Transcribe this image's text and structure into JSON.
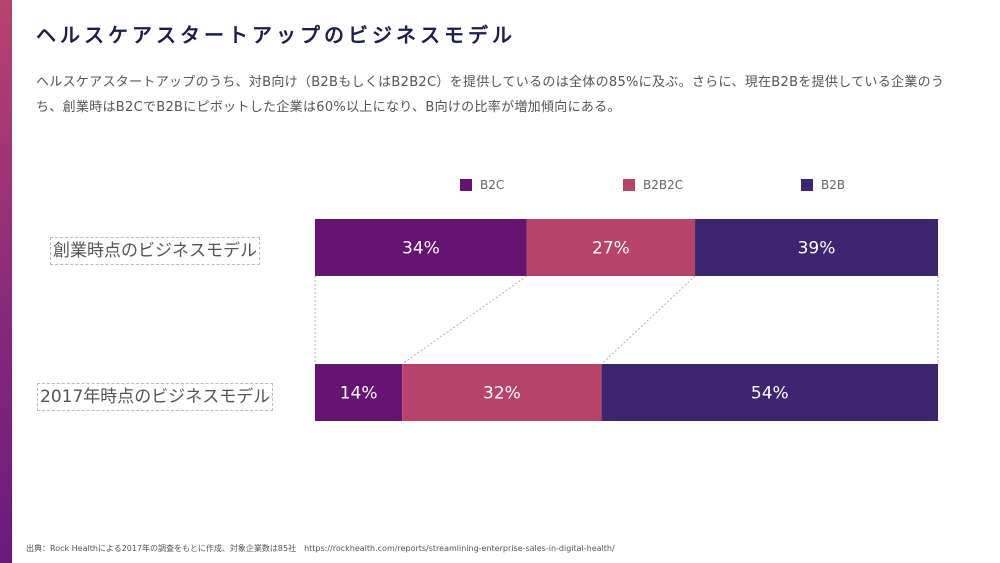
{
  "page": {
    "title": "ヘルスケアスタートアップのビジネスモデル",
    "description": "ヘルスケアスタートアップのうち、対B向け（B2BもしくはB2B2C）を提供しているのは全体の85%に及ぶ。さらに、現在B2Bを提供している企業のうち、創業時はB2CでB2Bにピボットした企業は60%以上になり、B向けの比率が増加傾向にある。",
    "footer": "出典：Rock Healthによる2017年の調査をもとに作成、対象企業数は85社　https://rockhealth.com/reports/streamlining-enterprise-sales-in-digital-health/"
  },
  "colors": {
    "B2C": "#651471",
    "B2B2C": "#b8436a",
    "B2B": "#3d2670"
  },
  "chart_data": {
    "type": "bar",
    "orientation": "horizontal",
    "stacked": true,
    "percent": true,
    "categories": [
      "創業時点のビジネスモデル",
      "2017年時点のビジネスモデル"
    ],
    "series": [
      {
        "name": "B2C",
        "values": [
          34,
          14
        ]
      },
      {
        "name": "B2B2C",
        "values": [
          27,
          32
        ]
      },
      {
        "name": "B2B",
        "values": [
          39,
          54
        ]
      }
    ],
    "data_labels": [
      [
        "34%",
        "27%",
        "39%"
      ],
      [
        "14%",
        "32%",
        "54%"
      ]
    ],
    "legend": [
      "B2C",
      "B2B2C",
      "B2B"
    ],
    "legend_position": "top",
    "xlim": [
      0,
      100
    ],
    "connector_lines": "dashed",
    "title": "",
    "xlabel": "",
    "ylabel": ""
  }
}
